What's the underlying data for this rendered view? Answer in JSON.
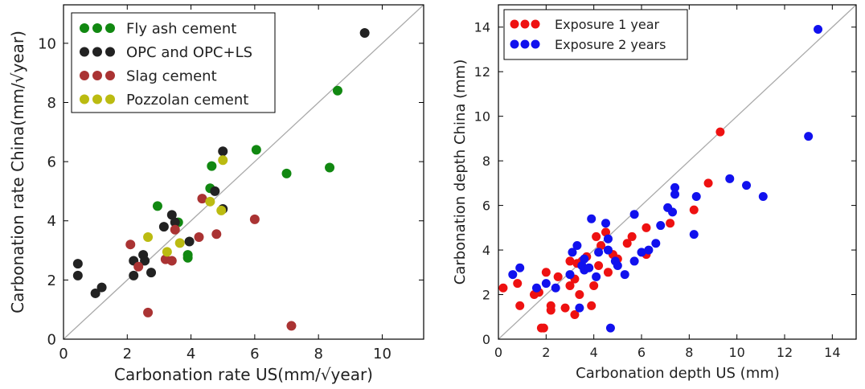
{
  "chart_data": [
    {
      "type": "scatter",
      "title": "",
      "xlabel": "Carbonation rate US(mm/√year)",
      "ylabel": "Carbonation rate China(mm/√year)",
      "xlim": [
        0,
        11.3
      ],
      "ylim": [
        0,
        11.3
      ],
      "xticks": [
        "0",
        "2",
        "4",
        "6",
        "8",
        "10"
      ],
      "yticks": [
        "0",
        "2",
        "4",
        "6",
        "8",
        "10"
      ],
      "reference_line": "y = x",
      "grid": false,
      "legend_position": "top-left",
      "series": [
        {
          "name": "Fly ash cement",
          "color": "#118811",
          "points": [
            [
              2.95,
              4.5
            ],
            [
              3.9,
              2.85
            ],
            [
              3.9,
              2.75
            ],
            [
              3.6,
              3.95
            ],
            [
              4.6,
              5.1
            ],
            [
              4.65,
              5.85
            ],
            [
              6.05,
              6.4
            ],
            [
              7.0,
              5.6
            ],
            [
              8.35,
              5.8
            ],
            [
              8.6,
              8.4
            ]
          ]
        },
        {
          "name": "OPC and OPC+LS",
          "color": "#222222",
          "points": [
            [
              0.45,
              2.55
            ],
            [
              0.45,
              2.15
            ],
            [
              1.0,
              1.55
            ],
            [
              1.2,
              1.75
            ],
            [
              2.2,
              2.15
            ],
            [
              2.2,
              2.65
            ],
            [
              2.5,
              2.85
            ],
            [
              2.55,
              2.65
            ],
            [
              2.75,
              2.25
            ],
            [
              3.15,
              3.8
            ],
            [
              3.4,
              4.2
            ],
            [
              3.5,
              3.95
            ],
            [
              3.95,
              3.3
            ],
            [
              4.75,
              5.0
            ],
            [
              5.0,
              6.35
            ],
            [
              5.0,
              4.4
            ],
            [
              9.45,
              10.35
            ]
          ]
        },
        {
          "name": "Slag cement",
          "color": "#aa3333",
          "points": [
            [
              2.1,
              3.2
            ],
            [
              2.35,
              2.45
            ],
            [
              2.65,
              0.9
            ],
            [
              3.2,
              2.7
            ],
            [
              3.4,
              2.65
            ],
            [
              3.5,
              3.7
            ],
            [
              4.25,
              3.45
            ],
            [
              4.35,
              4.75
            ],
            [
              4.8,
              3.55
            ],
            [
              6.0,
              4.05
            ],
            [
              7.15,
              0.45
            ]
          ]
        },
        {
          "name": "Pozzolan cement",
          "color": "#bbbb11",
          "points": [
            [
              2.65,
              3.45
            ],
            [
              3.25,
              2.95
            ],
            [
              3.65,
              3.25
            ],
            [
              4.6,
              4.65
            ],
            [
              4.95,
              4.35
            ],
            [
              5.0,
              6.05
            ]
          ]
        }
      ]
    },
    {
      "type": "scatter",
      "title": "",
      "xlabel": "Carbonation depth US (mm)",
      "ylabel": "Carbonation depth China (mm)",
      "xlim": [
        0,
        15
      ],
      "ylim": [
        0,
        15
      ],
      "xticks": [
        "0",
        "2",
        "4",
        "6",
        "8",
        "10",
        "12",
        "14"
      ],
      "yticks": [
        "0",
        "2",
        "4",
        "6",
        "8",
        "10",
        "12",
        "14"
      ],
      "reference_line": "y = x",
      "grid": false,
      "legend_position": "top-left",
      "series": [
        {
          "name": "Exposure 1 year",
          "color": "#ee1111",
          "points": [
            [
              0.2,
              2.3
            ],
            [
              0.8,
              2.5
            ],
            [
              0.9,
              1.5
            ],
            [
              1.5,
              2.0
            ],
            [
              1.7,
              2.1
            ],
            [
              1.8,
              0.5
            ],
            [
              1.9,
              0.5
            ],
            [
              2.0,
              3.0
            ],
            [
              2.2,
              1.5
            ],
            [
              2.2,
              1.3
            ],
            [
              2.5,
              2.8
            ],
            [
              2.8,
              1.4
            ],
            [
              3.0,
              2.4
            ],
            [
              3.0,
              3.5
            ],
            [
              3.2,
              1.1
            ],
            [
              3.2,
              2.7
            ],
            [
              3.3,
              3.4
            ],
            [
              3.4,
              2.0
            ],
            [
              3.5,
              3.5
            ],
            [
              3.7,
              3.7
            ],
            [
              3.9,
              1.5
            ],
            [
              4.0,
              2.4
            ],
            [
              4.1,
              4.6
            ],
            [
              4.2,
              3.3
            ],
            [
              4.3,
              4.2
            ],
            [
              4.5,
              4.8
            ],
            [
              4.6,
              3.0
            ],
            [
              4.8,
              3.8
            ],
            [
              5.0,
              3.6
            ],
            [
              5.4,
              4.3
            ],
            [
              5.6,
              4.6
            ],
            [
              6.2,
              3.8
            ],
            [
              6.2,
              5.0
            ],
            [
              7.2,
              5.2
            ],
            [
              8.2,
              5.8
            ],
            [
              8.8,
              7.0
            ],
            [
              9.3,
              9.3
            ]
          ]
        },
        {
          "name": "Exposure 2 years",
          "color": "#1111ee",
          "points": [
            [
              0.6,
              2.9
            ],
            [
              0.9,
              3.2
            ],
            [
              1.6,
              2.3
            ],
            [
              2.0,
              2.5
            ],
            [
              2.4,
              2.3
            ],
            [
              3.0,
              2.9
            ],
            [
              3.1,
              3.9
            ],
            [
              3.3,
              4.2
            ],
            [
              3.4,
              1.4
            ],
            [
              3.5,
              3.3
            ],
            [
              3.6,
              3.6
            ],
            [
              3.6,
              3.1
            ],
            [
              3.8,
              3.2
            ],
            [
              3.9,
              5.4
            ],
            [
              4.1,
              2.8
            ],
            [
              4.2,
              3.9
            ],
            [
              4.5,
              5.2
            ],
            [
              4.6,
              4.5
            ],
            [
              4.6,
              4.0
            ],
            [
              4.7,
              0.5
            ],
            [
              4.9,
              3.5
            ],
            [
              5.0,
              3.3
            ],
            [
              5.3,
              2.9
            ],
            [
              5.7,
              5.6
            ],
            [
              5.7,
              3.5
            ],
            [
              6.0,
              3.9
            ],
            [
              6.3,
              4.0
            ],
            [
              6.6,
              4.3
            ],
            [
              6.8,
              5.1
            ],
            [
              7.1,
              5.9
            ],
            [
              7.3,
              5.7
            ],
            [
              7.4,
              6.5
            ],
            [
              7.4,
              6.8
            ],
            [
              8.2,
              4.7
            ],
            [
              8.3,
              6.4
            ],
            [
              9.7,
              7.2
            ],
            [
              10.4,
              6.9
            ],
            [
              11.1,
              6.4
            ],
            [
              13.0,
              9.1
            ],
            [
              13.4,
              13.9
            ]
          ]
        }
      ]
    }
  ]
}
